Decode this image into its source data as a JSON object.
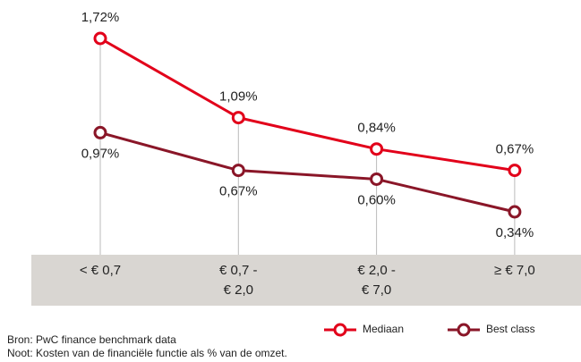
{
  "chart_data": {
    "type": "line",
    "categories": [
      "< € 0,7",
      "€ 0,7 -\n€ 2,0",
      "€ 2,0 -\n€ 7,0",
      "≥ € 7,0"
    ],
    "series": [
      {
        "name": "Mediaan",
        "color": "#e2001a",
        "values": [
          1.72,
          1.09,
          0.84,
          0.67
        ],
        "value_labels": [
          "1,72%",
          "1,09%",
          "0,84%",
          "0,67%"
        ]
      },
      {
        "name": "Best class",
        "color": "#8a1628",
        "values": [
          0.97,
          0.67,
          0.6,
          0.34
        ],
        "value_labels": [
          "0,97%",
          "0,67%",
          "0,60%",
          "0,34%"
        ]
      }
    ],
    "legend": "bottom-right",
    "notes": [
      "Bron: PwC finance benchmark data",
      "Noot: Kosten van de financiële functie als % van de omzet."
    ]
  }
}
